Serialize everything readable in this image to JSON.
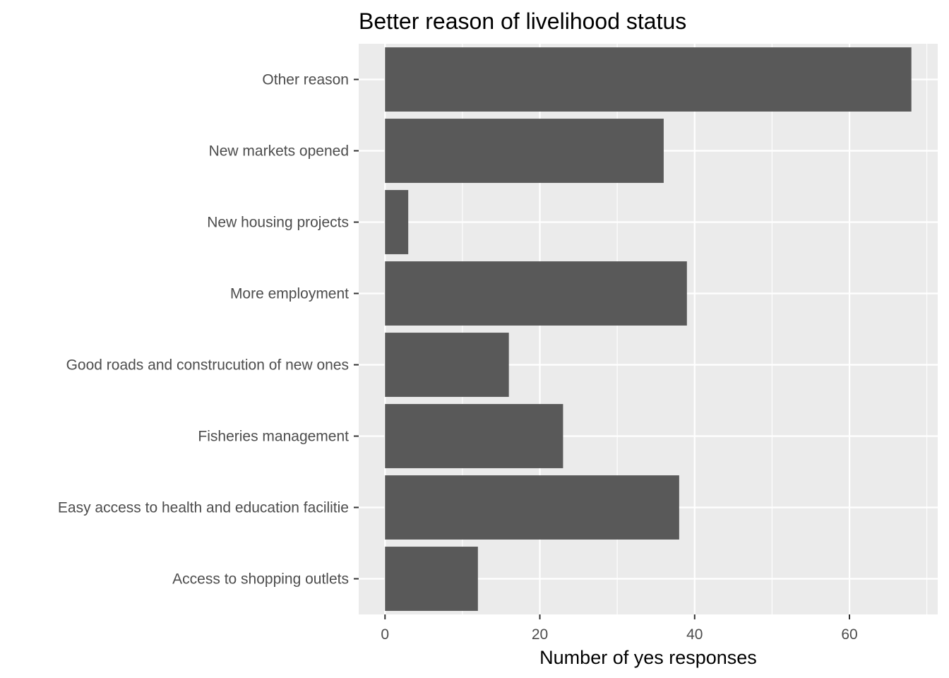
{
  "chart_data": {
    "type": "bar",
    "orientation": "horizontal",
    "title": "Better reason of livelihood status",
    "xlabel": "Number of yes responses",
    "ylabel": "",
    "categories": [
      "Access to shopping outlets",
      "Easy access to health and education facilitie",
      "Fisheries management",
      "Good roads and construcution of new ones",
      "More employment",
      "New housing projects",
      "New markets opened",
      "Other reason"
    ],
    "values": [
      12,
      38,
      23,
      16,
      39,
      3,
      36,
      68
    ],
    "xlim": [
      -3.4,
      71.4
    ],
    "xticks": [
      0,
      20,
      40,
      60
    ],
    "grid": true,
    "legend": "none",
    "colors": {
      "panel": "#ebebeb",
      "grid_major": "#ffffff",
      "bar": "#595959",
      "tick_text": "#4d4d4d",
      "tick_mark": "#333333",
      "title": "#000000"
    }
  }
}
